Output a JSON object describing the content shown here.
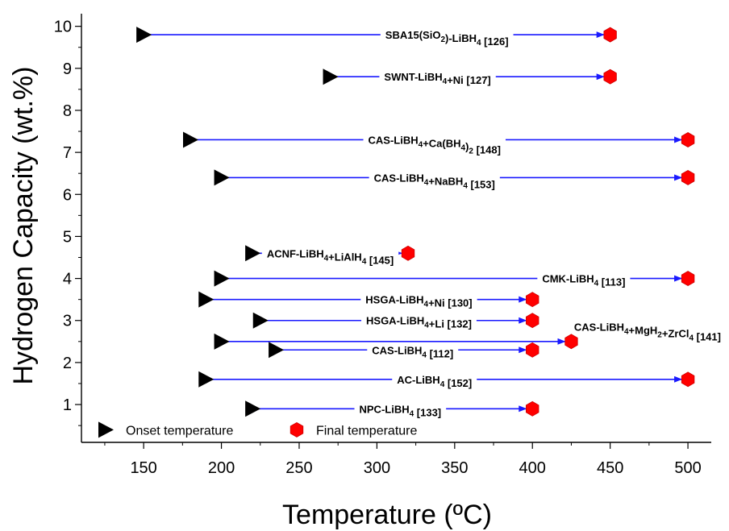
{
  "chart_data": {
    "type": "range-arrow",
    "xlabel": "Temperature (ºC)",
    "ylabel": "Hydrogen Capacity (wt.%)",
    "xlim": [
      110,
      515
    ],
    "ylim": [
      0.1,
      10.3
    ],
    "xticks": [
      150,
      200,
      250,
      300,
      350,
      400,
      450,
      500
    ],
    "yticks": [
      1,
      2,
      3,
      4,
      5,
      6,
      7,
      8,
      9,
      10
    ],
    "legend": {
      "placement": "bottom-left",
      "onset_label": "Onset temperature",
      "final_label": "Final temperature"
    },
    "colors": {
      "arrow": "#1a1aff",
      "onset_marker": "#000000",
      "final_marker": "#ff0000"
    },
    "series": [
      {
        "label": "SBA15(SiO2)-LiBH4 [126]",
        "label_parts": [
          [
            "SBA15(SiO",
            ""
          ],
          [
            "2",
            "sub"
          ],
          [
            ")-LiBH",
            ""
          ],
          [
            "4",
            "sub"
          ],
          [
            " [126]",
            ""
          ]
        ],
        "capacity": 9.8,
        "onset": 150,
        "final": 450,
        "label_center": 345
      },
      {
        "label": "SWNT-LiBH4+Ni [127]",
        "label_parts": [
          [
            "SWNT-LiBH",
            ""
          ],
          [
            "4",
            "sub"
          ],
          [
            "+Ni [127]",
            ""
          ]
        ],
        "capacity": 8.8,
        "onset": 270,
        "final": 450,
        "label_center": 339
      },
      {
        "label": "CAS-LiBH4+Ca(BH4)2 [148]",
        "label_parts": [
          [
            "CAS-LiBH",
            ""
          ],
          [
            "4",
            "sub"
          ],
          [
            "+Ca(BH",
            ""
          ],
          [
            "4",
            "sub"
          ],
          [
            ")",
            ""
          ],
          [
            "2",
            "sub"
          ],
          [
            " [148]",
            ""
          ]
        ],
        "capacity": 7.3,
        "onset": 180,
        "final": 500,
        "label_center": 337
      },
      {
        "label": "CAS-LiBH4+NaBH4 [153]",
        "label_parts": [
          [
            "CAS-LiBH",
            ""
          ],
          [
            "4",
            "sub"
          ],
          [
            "+NaBH",
            ""
          ],
          [
            "4",
            "sub"
          ],
          [
            " [153]",
            ""
          ]
        ],
        "capacity": 6.4,
        "onset": 200,
        "final": 500,
        "label_center": 337
      },
      {
        "label": "ACNF-LiBH4+LiAlH4 [145]",
        "label_parts": [
          [
            "ACNF-LiBH",
            ""
          ],
          [
            "4",
            "sub"
          ],
          [
            "+LiAlH",
            ""
          ],
          [
            "4",
            "sub"
          ],
          [
            " [145]",
            ""
          ]
        ],
        "capacity": 4.6,
        "onset": 220,
        "final": 320,
        "label_center": 270
      },
      {
        "label": "CMK-LiBH4 [113]",
        "label_parts": [
          [
            "CMK-LiBH",
            ""
          ],
          [
            "4",
            "sub"
          ],
          [
            " [113]",
            ""
          ]
        ],
        "capacity": 4.0,
        "onset": 200,
        "final": 500,
        "label_center": 433
      },
      {
        "label": "HSGA-LiBH4+Ni [130]",
        "label_parts": [
          [
            "HSGA-LiBH",
            ""
          ],
          [
            "4",
            "sub"
          ],
          [
            "+Ni [130]",
            ""
          ]
        ],
        "capacity": 3.5,
        "onset": 190,
        "final": 400,
        "label_center": 327
      },
      {
        "label": "HSGA-LiBH4+Li [132]",
        "label_parts": [
          [
            "HSGA-LiBH",
            ""
          ],
          [
            "4",
            "sub"
          ],
          [
            "+Li [132]",
            ""
          ]
        ],
        "capacity": 3.0,
        "onset": 225,
        "final": 400,
        "label_center": 327
      },
      {
        "label": "CAS-LiBH4+MgH2+ZrCl4 [141]",
        "label_parts": [
          [
            "CAS-LiBH",
            ""
          ],
          [
            "4",
            "sub"
          ],
          [
            "+MgH",
            ""
          ],
          [
            "2",
            "sub"
          ],
          [
            "+ZrCl",
            ""
          ],
          [
            "4",
            "sub"
          ],
          [
            " [141]",
            ""
          ]
        ],
        "capacity": 2.5,
        "onset": 200,
        "final": 425,
        "label_center": 474,
        "label_y": 2.85
      },
      {
        "label": "CAS-LiBH4 [112]",
        "label_parts": [
          [
            "CAS-LiBH",
            ""
          ],
          [
            "4",
            "sub"
          ],
          [
            " [112]",
            ""
          ]
        ],
        "capacity": 2.3,
        "onset": 235,
        "final": 400,
        "label_center": 323
      },
      {
        "label": "AC-LiBH4 [152]",
        "label_parts": [
          [
            "AC-LiBH",
            ""
          ],
          [
            "4",
            "sub"
          ],
          [
            " [152]",
            ""
          ]
        ],
        "capacity": 1.6,
        "onset": 190,
        "final": 500,
        "label_center": 337
      },
      {
        "label": "NPC-LiBH4 [133]",
        "label_parts": [
          [
            "NPC-LiBH",
            ""
          ],
          [
            "4",
            "sub"
          ],
          [
            " [133]",
            ""
          ]
        ],
        "capacity": 0.9,
        "onset": 220,
        "final": 400,
        "label_center": 315
      }
    ]
  }
}
